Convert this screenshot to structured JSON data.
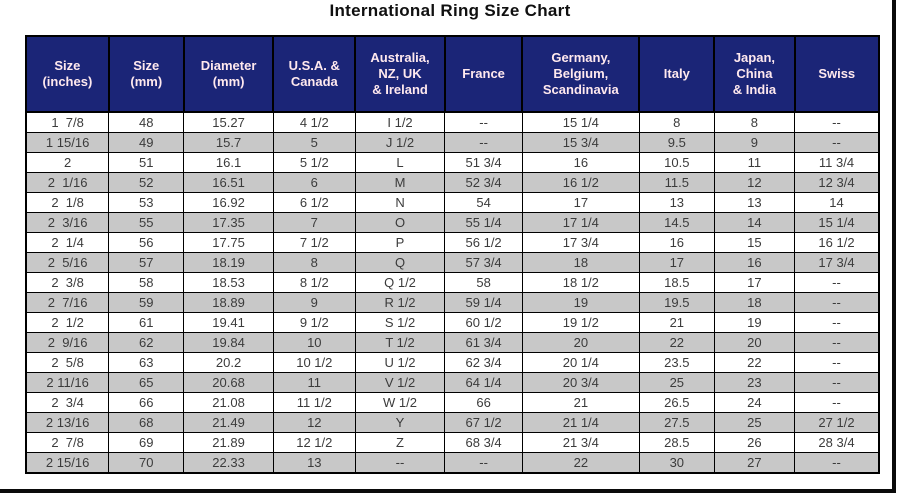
{
  "title": "International Ring Size Chart",
  "colors": {
    "header_bg": "#1b2577",
    "header_text": "#ffe9ee",
    "row_bg": "#ffffff",
    "row_alt_bg": "#c8c8c8",
    "border": "#000000",
    "cell_text": "#3b3b3b",
    "title_text": "#101010"
  },
  "chart_data": {
    "type": "table",
    "title": "International Ring Size Chart",
    "grid": "on",
    "row_striping": "white / gray alternating, first data row white",
    "columns": [
      "Size\n(inches)",
      "Size\n(mm)",
      "Diameter\n(mm)",
      "U.S.A. &\nCanada",
      "Australia,\nNZ, UK\n& Ireland",
      "France",
      "Germany,\nBelgium,\nScandinavia",
      "Italy",
      "Japan,\nChina\n& India",
      "Swiss"
    ],
    "rows": [
      [
        "1  7/8",
        "48",
        "15.27",
        "4 1/2",
        "I 1/2",
        "--",
        "15 1/4",
        "8",
        "8",
        "--"
      ],
      [
        "1 15/16",
        "49",
        "15.7",
        "5",
        "J 1/2",
        "--",
        "15 3/4",
        "9.5",
        "9",
        "--"
      ],
      [
        "2",
        "51",
        "16.1",
        "5 1/2",
        "L",
        "51 3/4",
        "16",
        "10.5",
        "11",
        "11 3/4"
      ],
      [
        "2  1/16",
        "52",
        "16.51",
        "6",
        "M",
        "52 3/4",
        "16 1/2",
        "11.5",
        "12",
        "12 3/4"
      ],
      [
        "2  1/8",
        "53",
        "16.92",
        "6 1/2",
        "N",
        "54",
        "17",
        "13",
        "13",
        "14"
      ],
      [
        "2  3/16",
        "55",
        "17.35",
        "7",
        "O",
        "55 1/4",
        "17 1/4",
        "14.5",
        "14",
        "15 1/4"
      ],
      [
        "2  1/4",
        "56",
        "17.75",
        "7 1/2",
        "P",
        "56 1/2",
        "17 3/4",
        "16",
        "15",
        "16 1/2"
      ],
      [
        "2  5/16",
        "57",
        "18.19",
        "8",
        "Q",
        "57 3/4",
        "18",
        "17",
        "16",
        "17 3/4"
      ],
      [
        "2  3/8",
        "58",
        "18.53",
        "8 1/2",
        "Q 1/2",
        "58",
        "18 1/2",
        "18.5",
        "17",
        "--"
      ],
      [
        "2  7/16",
        "59",
        "18.89",
        "9",
        "R 1/2",
        "59 1/4",
        "19",
        "19.5",
        "18",
        "--"
      ],
      [
        "2  1/2",
        "61",
        "19.41",
        "9 1/2",
        "S 1/2",
        "60 1/2",
        "19 1/2",
        "21",
        "19",
        "--"
      ],
      [
        "2  9/16",
        "62",
        "19.84",
        "10",
        "T 1/2",
        "61 3/4",
        "20",
        "22",
        "20",
        "--"
      ],
      [
        "2  5/8",
        "63",
        "20.2",
        "10 1/2",
        "U 1/2",
        "62 3/4",
        "20 1/4",
        "23.5",
        "22",
        "--"
      ],
      [
        "2 11/16",
        "65",
        "20.68",
        "11",
        "V 1/2",
        "64 1/4",
        "20 3/4",
        "25",
        "23",
        "--"
      ],
      [
        "2  3/4",
        "66",
        "21.08",
        "11 1/2",
        "W 1/2",
        "66",
        "21",
        "26.5",
        "24",
        "--"
      ],
      [
        "2 13/16",
        "68",
        "21.49",
        "12",
        "Y",
        "67 1/2",
        "21 1/4",
        "27.5",
        "25",
        "27 1/2"
      ],
      [
        "2  7/8",
        "69",
        "21.89",
        "12 1/2",
        "Z",
        "68 3/4",
        "21 3/4",
        "28.5",
        "26",
        "28 3/4"
      ],
      [
        "2 15/16",
        "70",
        "22.33",
        "13",
        "--",
        "--",
        "22",
        "30",
        "27",
        "--"
      ]
    ]
  }
}
